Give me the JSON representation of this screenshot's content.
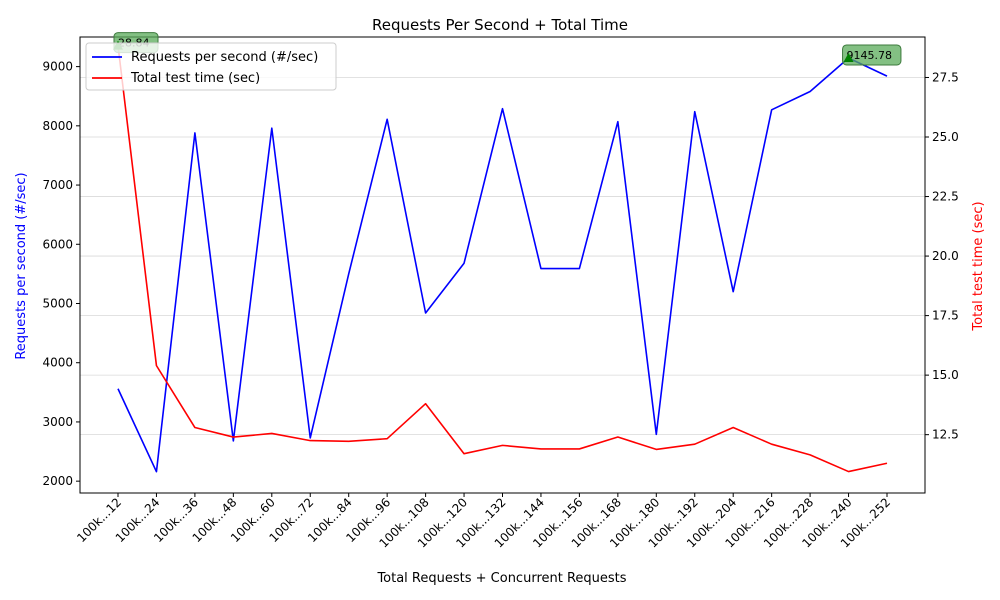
{
  "chart_data": {
    "type": "line",
    "title": "Requests Per Second + Total Time",
    "xlabel": "Total Requests + Concurrent Requests",
    "ylabel_left": "Requests per second (#/sec)",
    "ylabel_right": "Total test time (sec)",
    "categories": [
      "100k...12",
      "100k...24",
      "100k...36",
      "100k...48",
      "100k...60",
      "100k...72",
      "100k...84",
      "100k...96",
      "100k...108",
      "100k...120",
      "100k...132",
      "100k...144",
      "100k...156",
      "100k...168",
      "100k...180",
      "100k...192",
      "100k...204",
      "100k...216",
      "100k...228",
      "100k...240",
      "100k...252"
    ],
    "series": [
      {
        "name": "Requests per second (#/sec)",
        "axis": "left",
        "color": "#0000ff",
        "values": [
          3560,
          2160,
          7880,
          2680,
          7960,
          2730,
          5500,
          8110,
          4840,
          5680,
          8290,
          5590,
          5590,
          8070,
          2790,
          8240,
          5200,
          8270,
          8580,
          9145.78,
          8840
        ]
      },
      {
        "name": "Total test time (sec)",
        "axis": "right",
        "color": "#ff0000",
        "values": [
          28.84,
          15.4,
          12.8,
          12.4,
          12.55,
          12.25,
          12.22,
          12.33,
          13.8,
          11.7,
          12.05,
          11.9,
          11.9,
          12.4,
          11.88,
          12.1,
          12.8,
          12.1,
          11.65,
          10.95,
          11.3
        ]
      }
    ],
    "ylim_left": [
      1800,
      9500
    ],
    "yticks_left": [
      2000,
      3000,
      4000,
      5000,
      6000,
      7000,
      8000,
      9000
    ],
    "ylim_right": [
      10.05,
      29.2
    ],
    "yticks_right": [
      "12.5",
      "15.0",
      "17.5",
      "20.0",
      "22.5",
      "25.0",
      "27.5"
    ],
    "grid": "horizontal",
    "legend_position": "top-left",
    "annotations": [
      {
        "label": "28.84",
        "x_index": 0,
        "marker_color": "#008000"
      },
      {
        "label": "9145.78",
        "x_index": 19,
        "marker_color": "#008000"
      }
    ]
  }
}
